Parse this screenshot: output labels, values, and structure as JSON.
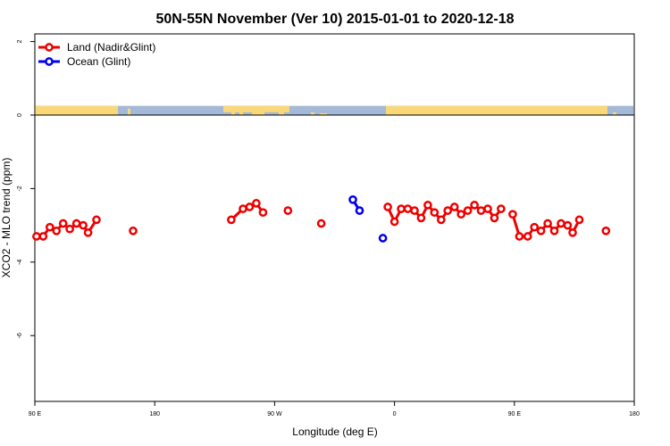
{
  "chart_data": {
    "type": "line",
    "title": "50N-55N November (Ver 10)   2015-01-01 to 2020-12-18",
    "xlabel": "Longitude (deg E)",
    "ylabel": "XCO2 - MLO trend (ppm)",
    "xlim": [
      90,
      450
    ],
    "ylim": [
      -8,
      2.2
    ],
    "x_ticks": [
      90,
      162,
      234,
      306,
      378,
      450
    ],
    "x_tick_labels": [
      "90 E",
      "180",
      "90 W",
      "0",
      "90 E",
      "180"
    ],
    "y_ticks": [
      2,
      0,
      -2,
      -4,
      -6
    ],
    "y_tick_labels": [
      "2",
      "0",
      "-2",
      "-4",
      "-6"
    ],
    "legend_position": "top-left",
    "land_strip": {
      "y_range": [
        0,
        0.25
      ],
      "ocean_color": "#a4b8d8",
      "land_color": "#f8d878"
    },
    "series": [
      {
        "name": "Land (Nadir&Glint)",
        "color": "#ee0000",
        "segments": [
          [
            [
              91,
              -3.3
            ],
            [
              95,
              -3.3
            ],
            [
              99,
              -3.05
            ],
            [
              103,
              -3.15
            ],
            [
              107,
              -2.95
            ],
            [
              111,
              -3.1
            ],
            [
              115,
              -2.95
            ],
            [
              119,
              -3.0
            ],
            [
              122,
              -3.2
            ],
            [
              127,
              -2.85
            ]
          ],
          [
            [
              149,
              -3.15
            ]
          ],
          [
            [
              208,
              -2.85
            ],
            [
              215,
              -2.55
            ],
            [
              219,
              -2.5
            ],
            [
              223,
              -2.4
            ],
            [
              227,
              -2.65
            ]
          ],
          [
            [
              242,
              -2.6
            ]
          ],
          [
            [
              262,
              -2.95
            ]
          ],
          [
            [
              302,
              -2.5
            ],
            [
              306,
              -2.9
            ],
            [
              310,
              -2.55
            ],
            [
              314,
              -2.55
            ],
            [
              318,
              -2.6
            ],
            [
              322,
              -2.8
            ],
            [
              326,
              -2.45
            ],
            [
              330,
              -2.65
            ],
            [
              334,
              -2.85
            ],
            [
              338,
              -2.6
            ],
            [
              342,
              -2.5
            ],
            [
              346,
              -2.7
            ],
            [
              350,
              -2.6
            ],
            [
              354,
              -2.45
            ],
            [
              358,
              -2.6
            ],
            [
              362,
              -2.55
            ],
            [
              366,
              -2.8
            ],
            [
              370,
              -2.55
            ]
          ],
          [
            [
              377,
              -2.7
            ],
            [
              381,
              -3.3
            ],
            [
              386,
              -3.3
            ],
            [
              390,
              -3.05
            ],
            [
              394,
              -3.15
            ],
            [
              398,
              -2.95
            ],
            [
              402,
              -3.15
            ],
            [
              406,
              -2.95
            ],
            [
              410,
              -3.0
            ],
            [
              413,
              -3.2
            ],
            [
              417,
              -2.85
            ]
          ],
          [
            [
              433,
              -3.15
            ]
          ]
        ]
      },
      {
        "name": "Ocean (Glint)",
        "color": "#0000ee",
        "segments": [
          [
            [
              281,
              -2.3
            ],
            [
              285,
              -2.6
            ]
          ],
          [
            [
              299,
              -3.35
            ]
          ]
        ]
      }
    ]
  }
}
